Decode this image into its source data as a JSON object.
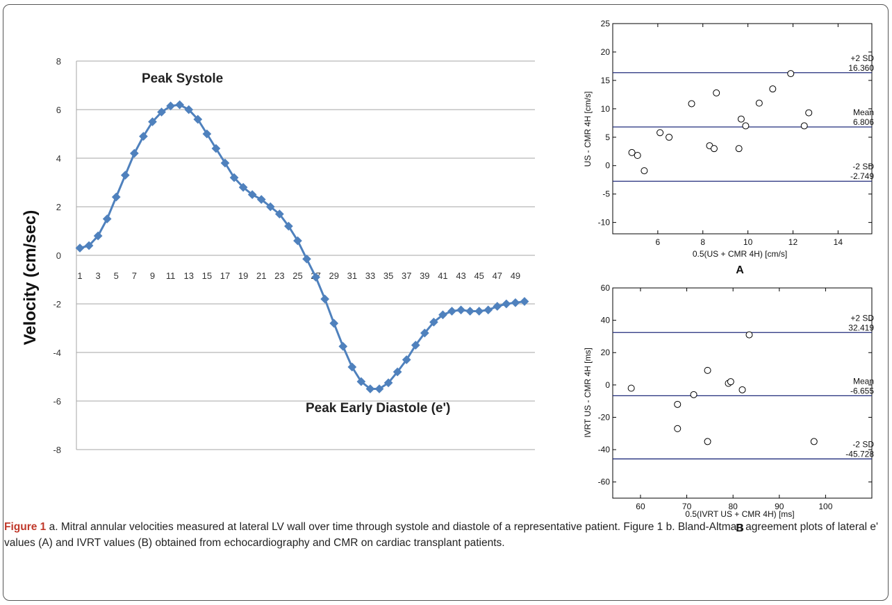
{
  "caption": {
    "figure_label": "Figure 1",
    "text": " a. Mitral annular velocities measured at lateral LV wall over time through systole and diastole of a representative patient. Figure 1 b. Bland-Altman agreement plots of lateral e' values (A) and IVRT values (B) obtained from echocardiography and CMR on cardiac transplant patients."
  },
  "chart_data": [
    {
      "type": "line",
      "title": "",
      "xlabel": "",
      "ylabel": "Velocity (cm/sec)",
      "ylim": [
        -8,
        8
      ],
      "yticks": [
        8,
        6,
        4,
        2,
        0,
        -2,
        -4,
        -6,
        -8
      ],
      "xtick_labels": [
        "1",
        "3",
        "5",
        "7",
        "9",
        "11",
        "13",
        "15",
        "17",
        "19",
        "21",
        "23",
        "25",
        "27",
        "29",
        "31",
        "33",
        "35",
        "37",
        "39",
        "41",
        "43",
        "45",
        "47",
        "49"
      ],
      "grid": "horizontal",
      "color": "#4f81bd",
      "annotations": [
        "Peak Systole",
        "Peak Early Diastole (e')"
      ],
      "x": [
        1,
        2,
        3,
        4,
        5,
        6,
        7,
        8,
        9,
        10,
        11,
        12,
        13,
        14,
        15,
        16,
        17,
        18,
        19,
        20,
        21,
        22,
        23,
        24,
        25,
        26,
        27,
        28,
        29,
        30,
        31,
        32,
        33,
        34,
        35,
        36,
        37,
        38,
        39,
        40,
        41,
        42,
        43,
        44,
        45,
        46,
        47,
        48,
        49,
        50
      ],
      "values": [
        0.3,
        0.4,
        0.8,
        1.5,
        2.4,
        3.3,
        4.2,
        4.9,
        5.5,
        5.9,
        6.15,
        6.2,
        6.0,
        5.6,
        5.0,
        4.4,
        3.8,
        3.2,
        2.8,
        2.5,
        2.3,
        2.0,
        1.7,
        1.2,
        0.6,
        -0.15,
        -0.9,
        -1.8,
        -2.8,
        -3.75,
        -4.6,
        -5.2,
        -5.5,
        -5.5,
        -5.25,
        -4.8,
        -4.3,
        -3.7,
        -3.2,
        -2.75,
        -2.45,
        -2.3,
        -2.25,
        -2.3,
        -2.3,
        -2.25,
        -2.1,
        -2.0,
        -1.95,
        -1.9
      ]
    },
    {
      "type": "scatter",
      "panel_label": "A",
      "xlabel": "0.5(US + CMR 4H) [cm/s]",
      "ylabel": "US - CMR 4H [cm/s]",
      "xlim": [
        4,
        15.5
      ],
      "ylim": [
        -12,
        25
      ],
      "xticks": [
        6,
        8,
        10,
        12,
        14
      ],
      "yticks": [
        25,
        20,
        15,
        10,
        5,
        0,
        -5,
        -10
      ],
      "reference_lines": [
        {
          "label": "+2 SD",
          "value_label": "16.360",
          "y": 16.36
        },
        {
          "label": "Mean",
          "value_label": "6.806",
          "y": 6.806
        },
        {
          "label": "-2 SD",
          "value_label": "-2.749",
          "y": -2.749
        }
      ],
      "points": [
        {
          "x": 4.85,
          "y": 2.3
        },
        {
          "x": 5.1,
          "y": 1.8
        },
        {
          "x": 5.4,
          "y": -0.9
        },
        {
          "x": 6.1,
          "y": 5.8
        },
        {
          "x": 6.5,
          "y": 5.0
        },
        {
          "x": 7.5,
          "y": 10.9
        },
        {
          "x": 8.3,
          "y": 3.5
        },
        {
          "x": 8.5,
          "y": 3.0
        },
        {
          "x": 8.6,
          "y": 12.8
        },
        {
          "x": 9.6,
          "y": 3.0
        },
        {
          "x": 9.7,
          "y": 8.2
        },
        {
          "x": 9.9,
          "y": 7.0
        },
        {
          "x": 10.5,
          "y": 11.0
        },
        {
          "x": 11.1,
          "y": 13.5
        },
        {
          "x": 11.9,
          "y": 16.2
        },
        {
          "x": 12.5,
          "y": 7.0
        },
        {
          "x": 12.7,
          "y": 9.3
        }
      ]
    },
    {
      "type": "scatter",
      "panel_label": "B",
      "xlabel": "0.5(IVRT US + CMR 4H) [ms]",
      "ylabel": "IVRT US - CMR 4H [ms]",
      "xlim": [
        54,
        110
      ],
      "ylim": [
        -70,
        60
      ],
      "xticks": [
        60,
        70,
        80,
        90,
        100
      ],
      "yticks": [
        60,
        40,
        20,
        0,
        -20,
        -40,
        -60
      ],
      "reference_lines": [
        {
          "label": "+2 SD",
          "value_label": "32.419",
          "y": 32.419
        },
        {
          "label": "Mean",
          "value_label": "-6.655",
          "y": -6.655
        },
        {
          "label": "-2 SD",
          "value_label": "-45.728",
          "y": -45.728
        }
      ],
      "points": [
        {
          "x": 58,
          "y": -2
        },
        {
          "x": 68,
          "y": -12
        },
        {
          "x": 68,
          "y": -27
        },
        {
          "x": 71.5,
          "y": -6
        },
        {
          "x": 74.5,
          "y": 9
        },
        {
          "x": 74.5,
          "y": -35
        },
        {
          "x": 79,
          "y": 1
        },
        {
          "x": 79.5,
          "y": 2
        },
        {
          "x": 82,
          "y": -3
        },
        {
          "x": 83.5,
          "y": 31
        },
        {
          "x": 97.5,
          "y": -35
        }
      ]
    }
  ]
}
